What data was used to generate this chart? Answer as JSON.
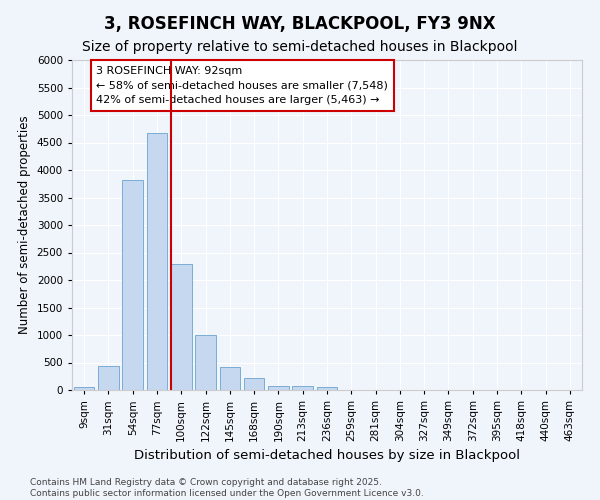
{
  "title": "3, ROSEFINCH WAY, BLACKPOOL, FY3 9NX",
  "subtitle": "Size of property relative to semi-detached houses in Blackpool",
  "xlabel": "Distribution of semi-detached houses by size in Blackpool",
  "ylabel": "Number of semi-detached properties",
  "bar_labels": [
    "9sqm",
    "31sqm",
    "54sqm",
    "77sqm",
    "100sqm",
    "122sqm",
    "145sqm",
    "168sqm",
    "190sqm",
    "213sqm",
    "236sqm",
    "259sqm",
    "281sqm",
    "304sqm",
    "327sqm",
    "349sqm",
    "372sqm",
    "395sqm",
    "418sqm",
    "440sqm",
    "463sqm"
  ],
  "bar_values": [
    50,
    430,
    3820,
    4680,
    2290,
    1000,
    420,
    210,
    80,
    80,
    50,
    0,
    0,
    0,
    0,
    0,
    0,
    0,
    0,
    0,
    0
  ],
  "bar_color": "#c5d8f0",
  "bar_edge_color": "#7aadd4",
  "vline_color": "#cc0000",
  "annotation_text": "3 ROSEFINCH WAY: 92sqm\n← 58% of semi-detached houses are smaller (7,548)\n42% of semi-detached houses are larger (5,463) →",
  "annotation_box_color": "white",
  "annotation_box_edge": "#cc0000",
  "ylim": [
    0,
    6000
  ],
  "yticks": [
    0,
    500,
    1000,
    1500,
    2000,
    2500,
    3000,
    3500,
    4000,
    4500,
    5000,
    5500,
    6000
  ],
  "bg_color": "#f0f4fb",
  "plot_bg_color": "#f0f4fb",
  "footnote": "Contains HM Land Registry data © Crown copyright and database right 2025.\nContains public sector information licensed under the Open Government Licence v3.0.",
  "title_fontsize": 12,
  "subtitle_fontsize": 10,
  "xlabel_fontsize": 9.5,
  "ylabel_fontsize": 8.5,
  "tick_fontsize": 7.5,
  "footnote_fontsize": 6.5
}
